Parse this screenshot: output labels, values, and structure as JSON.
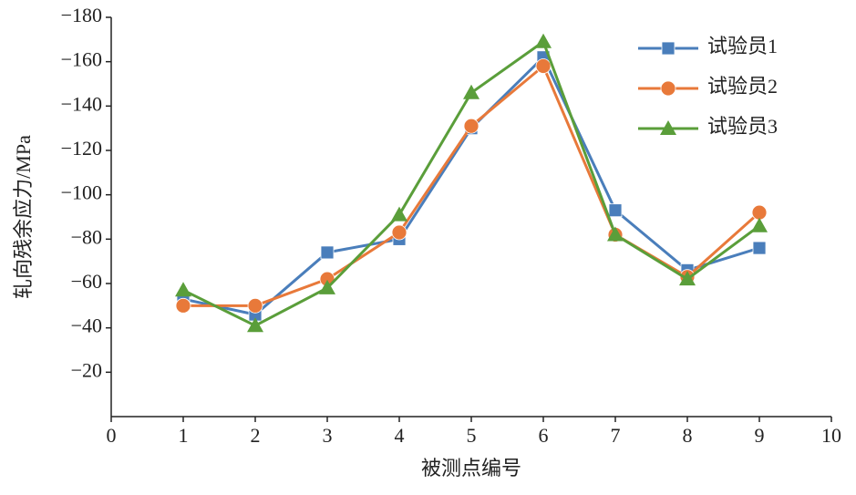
{
  "chart_data": {
    "type": "line",
    "xlabel": "被测点编号",
    "ylabel": "轧向残余应力/MPa",
    "x": [
      1,
      2,
      3,
      4,
      5,
      6,
      7,
      8,
      9
    ],
    "xlim": [
      0,
      10
    ],
    "xticks": [
      0,
      1,
      2,
      3,
      4,
      5,
      6,
      7,
      8,
      9,
      10
    ],
    "ylim": [
      0,
      -180
    ],
    "yticks": [
      {
        "value": -20,
        "label": "−20"
      },
      {
        "value": -40,
        "label": "−40"
      },
      {
        "value": -60,
        "label": "−60"
      },
      {
        "value": -80,
        "label": "−80"
      },
      {
        "value": -100,
        "label": "−100"
      },
      {
        "value": -120,
        "label": "−120"
      },
      {
        "value": -140,
        "label": "−140"
      },
      {
        "value": -160,
        "label": "−160"
      },
      {
        "value": -180,
        "label": "−180"
      }
    ],
    "legend": "top-right",
    "series": [
      {
        "name": "试验员1",
        "color": "#4a7ebb",
        "marker": "square",
        "values": [
          -53,
          -46,
          -74,
          -80,
          -130,
          -162,
          -93,
          -66,
          -76
        ]
      },
      {
        "name": "试验员2",
        "color": "#e8793a",
        "marker": "circle",
        "values": [
          -50,
          -50,
          -62,
          -83,
          -131,
          -158,
          -82,
          -63,
          -92
        ]
      },
      {
        "name": "试验员3",
        "color": "#5a9e3a",
        "marker": "triangle",
        "values": [
          -57,
          -41,
          -58,
          -91,
          -146,
          -169,
          -82,
          -62,
          -86
        ]
      }
    ]
  }
}
